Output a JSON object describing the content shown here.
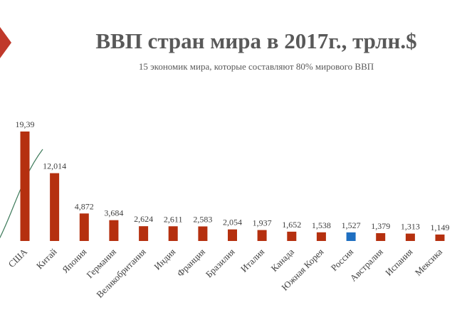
{
  "chart_data": {
    "type": "bar",
    "title": "ВВП стран мира в 2017г., трлн.$",
    "subtitle": "15 экономик мира, которые составляют 80% мирового ВВП",
    "categories": [
      "США",
      "Китай",
      "Япония",
      "Германия",
      "Великобритания",
      "Индия",
      "Франция",
      "Бразилия",
      "Италия",
      "Канада",
      "Южная Корея",
      "Россия",
      "Австралия",
      "Испания",
      "Мексика"
    ],
    "series": [
      {
        "values": [
          19.39,
          12.014,
          4.872,
          3.684,
          2.624,
          2.611,
          2.583,
          2.054,
          1.937,
          1.652,
          1.538,
          1.527,
          1.379,
          1.313,
          1.149
        ],
        "value_labels": [
          "19,39",
          "12,014",
          "4,872",
          "3,684",
          "2,624",
          "2,611",
          "2,583",
          "2,054",
          "1,937",
          "1,652",
          "1,538",
          "1,527",
          "1,379",
          "1,313",
          "1,149"
        ]
      }
    ],
    "ylim": [
      0,
      20
    ],
    "grid": false,
    "legend": "none",
    "colors": {
      "bar": "#b5300f",
      "highlight": "#1f6fc1",
      "highlight_category": "Россия"
    }
  },
  "decor": {
    "accent": "#c0392b"
  }
}
